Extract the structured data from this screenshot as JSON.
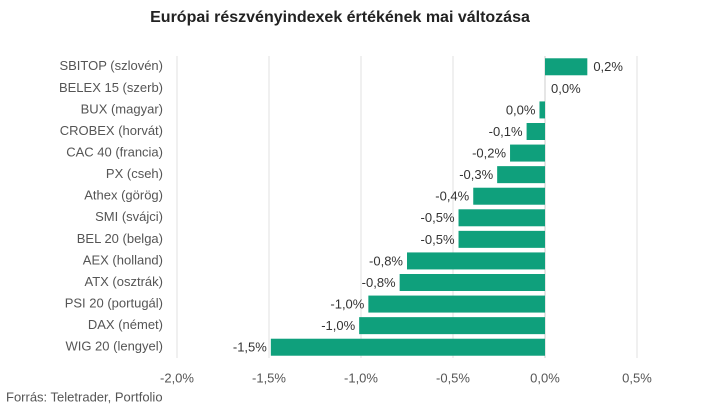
{
  "chart_data": {
    "type": "bar",
    "orientation": "horizontal",
    "title": "Európai részvényindexek értékének mai változása",
    "source": "Forrás: Teletrader, Portfolio",
    "categories": [
      "SBITOP (szlovén)",
      "BELEX 15 (szerb)",
      "BUX (magyar)",
      "CROBEX (horvát)",
      "CAC 40 (francia)",
      "PX (cseh)",
      "Athex (görög)",
      "SMI (svájci)",
      "BEL 20 (belga)",
      "AEX (holland)",
      "ATX (osztrák)",
      "PSI 20 (portugál)",
      "DAX (német)",
      "WIG 20 (lengyel)"
    ],
    "values": [
      0.23,
      0.0,
      -0.03,
      -0.1,
      -0.19,
      -0.26,
      -0.39,
      -0.47,
      -0.47,
      -0.75,
      -0.79,
      -0.96,
      -1.01,
      -1.49
    ],
    "value_labels": [
      "0,2%",
      "0,0%",
      "0,0%",
      "-0,1%",
      "-0,2%",
      "-0,3%",
      "-0,4%",
      "-0,5%",
      "-0,5%",
      "-0,8%",
      "-0,8%",
      "-1,0%",
      "-1,0%",
      "-1,5%"
    ],
    "color": "#0fa07c",
    "xlim": [
      -2,
      0.5
    ],
    "xticks": [
      {
        "value": -2,
        "label": "-2,0%"
      },
      {
        "value": -1.5,
        "label": "-1,5%"
      },
      {
        "value": -1,
        "label": "-1,0%"
      },
      {
        "value": -0.5,
        "label": "-0,5%"
      },
      {
        "value": 0,
        "label": "0,0%"
      },
      {
        "value": 0.5,
        "label": "0,5%"
      }
    ],
    "grid": true
  }
}
